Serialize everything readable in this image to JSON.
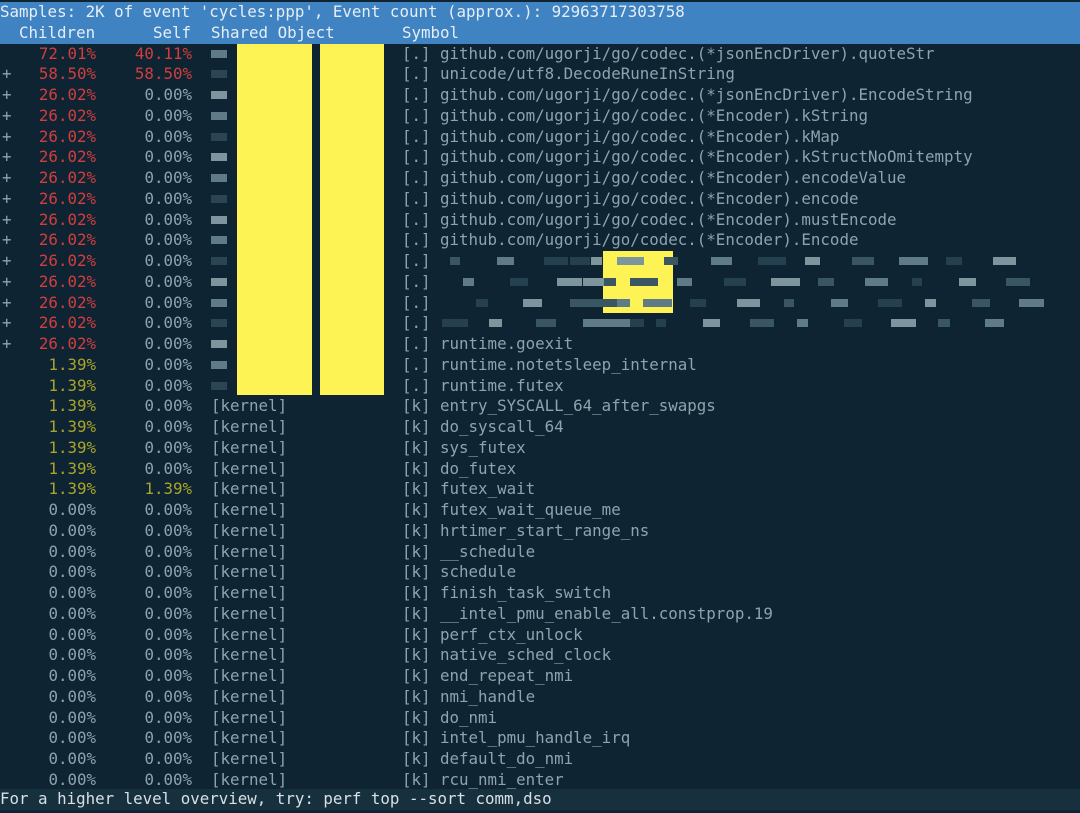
{
  "header": {
    "title": "Samples: 2K of event 'cycles:ppp', Event count (approx.): 92963717303758",
    "columns": {
      "children": "Children",
      "self": "Self",
      "shared_object": "Shared Object",
      "symbol": "Symbol"
    }
  },
  "colors": {
    "header_bg": "#3f83c3",
    "background": "#0f2433",
    "high": "#d23d3d",
    "medium": "#a8a52a",
    "normal": "#8ea3ad"
  },
  "rows": [
    {
      "expand": "",
      "children": "72.01%",
      "self": "40.11%",
      "dso": "",
      "level": "[.]",
      "symbol": "github.com/ugorji/go/codec.(*jsonEncDriver).quoteStr",
      "cc": "red",
      "sc": "red"
    },
    {
      "expand": "+",
      "children": "58.50%",
      "self": "58.50%",
      "dso": "",
      "level": "[.]",
      "symbol": "unicode/utf8.DecodeRuneInString",
      "cc": "red",
      "sc": "red"
    },
    {
      "expand": "+",
      "children": "26.02%",
      "self": "0.00%",
      "dso": "",
      "level": "[.]",
      "symbol": "github.com/ugorji/go/codec.(*jsonEncDriver).EncodeString",
      "cc": "red",
      "sc": ""
    },
    {
      "expand": "+",
      "children": "26.02%",
      "self": "0.00%",
      "dso": "",
      "level": "[.]",
      "symbol": "github.com/ugorji/go/codec.(*Encoder).kString",
      "cc": "red",
      "sc": ""
    },
    {
      "expand": "+",
      "children": "26.02%",
      "self": "0.00%",
      "dso": "",
      "level": "[.]",
      "symbol": "github.com/ugorji/go/codec.(*Encoder).kMap",
      "cc": "red",
      "sc": ""
    },
    {
      "expand": "+",
      "children": "26.02%",
      "self": "0.00%",
      "dso": "",
      "level": "[.]",
      "symbol": "github.com/ugorji/go/codec.(*Encoder).kStructNoOmitempty",
      "cc": "red",
      "sc": ""
    },
    {
      "expand": "+",
      "children": "26.02%",
      "self": "0.00%",
      "dso": "",
      "level": "[.]",
      "symbol": "github.com/ugorji/go/codec.(*Encoder).encodeValue",
      "cc": "red",
      "sc": ""
    },
    {
      "expand": "+",
      "children": "26.02%",
      "self": "0.00%",
      "dso": "",
      "level": "[.]",
      "symbol": "github.com/ugorji/go/codec.(*Encoder).encode",
      "cc": "red",
      "sc": ""
    },
    {
      "expand": "+",
      "children": "26.02%",
      "self": "0.00%",
      "dso": "",
      "level": "[.]",
      "symbol": "github.com/ugorji/go/codec.(*Encoder).mustEncode",
      "cc": "red",
      "sc": ""
    },
    {
      "expand": "+",
      "children": "26.02%",
      "self": "0.00%",
      "dso": "",
      "level": "[.]",
      "symbol": "github.com/ugorji/go/codec.(*Encoder).Encode",
      "cc": "red",
      "sc": ""
    },
    {
      "expand": "+",
      "children": "26.02%",
      "self": "0.00%",
      "dso": "",
      "level": "[.]",
      "symbol": "",
      "cc": "red",
      "sc": ""
    },
    {
      "expand": "+",
      "children": "26.02%",
      "self": "0.00%",
      "dso": "",
      "level": "[.]",
      "symbol": "",
      "cc": "red",
      "sc": ""
    },
    {
      "expand": "+",
      "children": "26.02%",
      "self": "0.00%",
      "dso": "",
      "level": "[.]",
      "symbol": "",
      "cc": "red",
      "sc": ""
    },
    {
      "expand": "+",
      "children": "26.02%",
      "self": "0.00%",
      "dso": "",
      "level": "[.]",
      "symbol": "",
      "cc": "red",
      "sc": ""
    },
    {
      "expand": "+",
      "children": "26.02%",
      "self": "0.00%",
      "dso": "",
      "level": "[.]",
      "symbol": "runtime.goexit",
      "cc": "red",
      "sc": ""
    },
    {
      "expand": "",
      "children": "1.39%",
      "self": "0.00%",
      "dso": "",
      "level": "[.]",
      "symbol": "runtime.notetsleep_internal",
      "cc": "yel",
      "sc": ""
    },
    {
      "expand": "",
      "children": "1.39%",
      "self": "0.00%",
      "dso": "",
      "level": "[.]",
      "symbol": "runtime.futex",
      "cc": "yel",
      "sc": ""
    },
    {
      "expand": "",
      "children": "1.39%",
      "self": "0.00%",
      "dso": "[kernel]",
      "level": "[k]",
      "symbol": "entry_SYSCALL_64_after_swapgs",
      "cc": "yel",
      "sc": ""
    },
    {
      "expand": "",
      "children": "1.39%",
      "self": "0.00%",
      "dso": "[kernel]",
      "level": "[k]",
      "symbol": "do_syscall_64",
      "cc": "yel",
      "sc": ""
    },
    {
      "expand": "",
      "children": "1.39%",
      "self": "0.00%",
      "dso": "[kernel]",
      "level": "[k]",
      "symbol": "sys_futex",
      "cc": "yel",
      "sc": ""
    },
    {
      "expand": "",
      "children": "1.39%",
      "self": "0.00%",
      "dso": "[kernel]",
      "level": "[k]",
      "symbol": "do_futex",
      "cc": "yel",
      "sc": ""
    },
    {
      "expand": "",
      "children": "1.39%",
      "self": "1.39%",
      "dso": "[kernel]",
      "level": "[k]",
      "symbol": "futex_wait",
      "cc": "yel",
      "sc": "yel"
    },
    {
      "expand": "",
      "children": "0.00%",
      "self": "0.00%",
      "dso": "[kernel]",
      "level": "[k]",
      "symbol": "futex_wait_queue_me",
      "cc": "",
      "sc": ""
    },
    {
      "expand": "",
      "children": "0.00%",
      "self": "0.00%",
      "dso": "[kernel]",
      "level": "[k]",
      "symbol": "hrtimer_start_range_ns",
      "cc": "",
      "sc": ""
    },
    {
      "expand": "",
      "children": "0.00%",
      "self": "0.00%",
      "dso": "[kernel]",
      "level": "[k]",
      "symbol": "__schedule",
      "cc": "",
      "sc": ""
    },
    {
      "expand": "",
      "children": "0.00%",
      "self": "0.00%",
      "dso": "[kernel]",
      "level": "[k]",
      "symbol": "schedule",
      "cc": "",
      "sc": ""
    },
    {
      "expand": "",
      "children": "0.00%",
      "self": "0.00%",
      "dso": "[kernel]",
      "level": "[k]",
      "symbol": "finish_task_switch",
      "cc": "",
      "sc": ""
    },
    {
      "expand": "",
      "children": "0.00%",
      "self": "0.00%",
      "dso": "[kernel]",
      "level": "[k]",
      "symbol": "__intel_pmu_enable_all.constprop.19",
      "cc": "",
      "sc": ""
    },
    {
      "expand": "",
      "children": "0.00%",
      "self": "0.00%",
      "dso": "[kernel]",
      "level": "[k]",
      "symbol": "perf_ctx_unlock",
      "cc": "",
      "sc": ""
    },
    {
      "expand": "",
      "children": "0.00%",
      "self": "0.00%",
      "dso": "[kernel]",
      "level": "[k]",
      "symbol": "native_sched_clock",
      "cc": "",
      "sc": ""
    },
    {
      "expand": "",
      "children": "0.00%",
      "self": "0.00%",
      "dso": "[kernel]",
      "level": "[k]",
      "symbol": "end_repeat_nmi",
      "cc": "",
      "sc": ""
    },
    {
      "expand": "",
      "children": "0.00%",
      "self": "0.00%",
      "dso": "[kernel]",
      "level": "[k]",
      "symbol": "nmi_handle",
      "cc": "",
      "sc": ""
    },
    {
      "expand": "",
      "children": "0.00%",
      "self": "0.00%",
      "dso": "[kernel]",
      "level": "[k]",
      "symbol": "do_nmi",
      "cc": "",
      "sc": ""
    },
    {
      "expand": "",
      "children": "0.00%",
      "self": "0.00%",
      "dso": "[kernel]",
      "level": "[k]",
      "symbol": "intel_pmu_handle_irq",
      "cc": "",
      "sc": ""
    },
    {
      "expand": "",
      "children": "0.00%",
      "self": "0.00%",
      "dso": "[kernel]",
      "level": "[k]",
      "symbol": "default_do_nmi",
      "cc": "",
      "sc": ""
    },
    {
      "expand": "",
      "children": "0.00%",
      "self": "0.00%",
      "dso": "[kernel]",
      "level": "[k]",
      "symbol": "rcu_nmi_enter",
      "cc": "",
      "sc": ""
    }
  ],
  "status": {
    "text": "For a higher level overview, try: perf top --sort comm,dso"
  }
}
